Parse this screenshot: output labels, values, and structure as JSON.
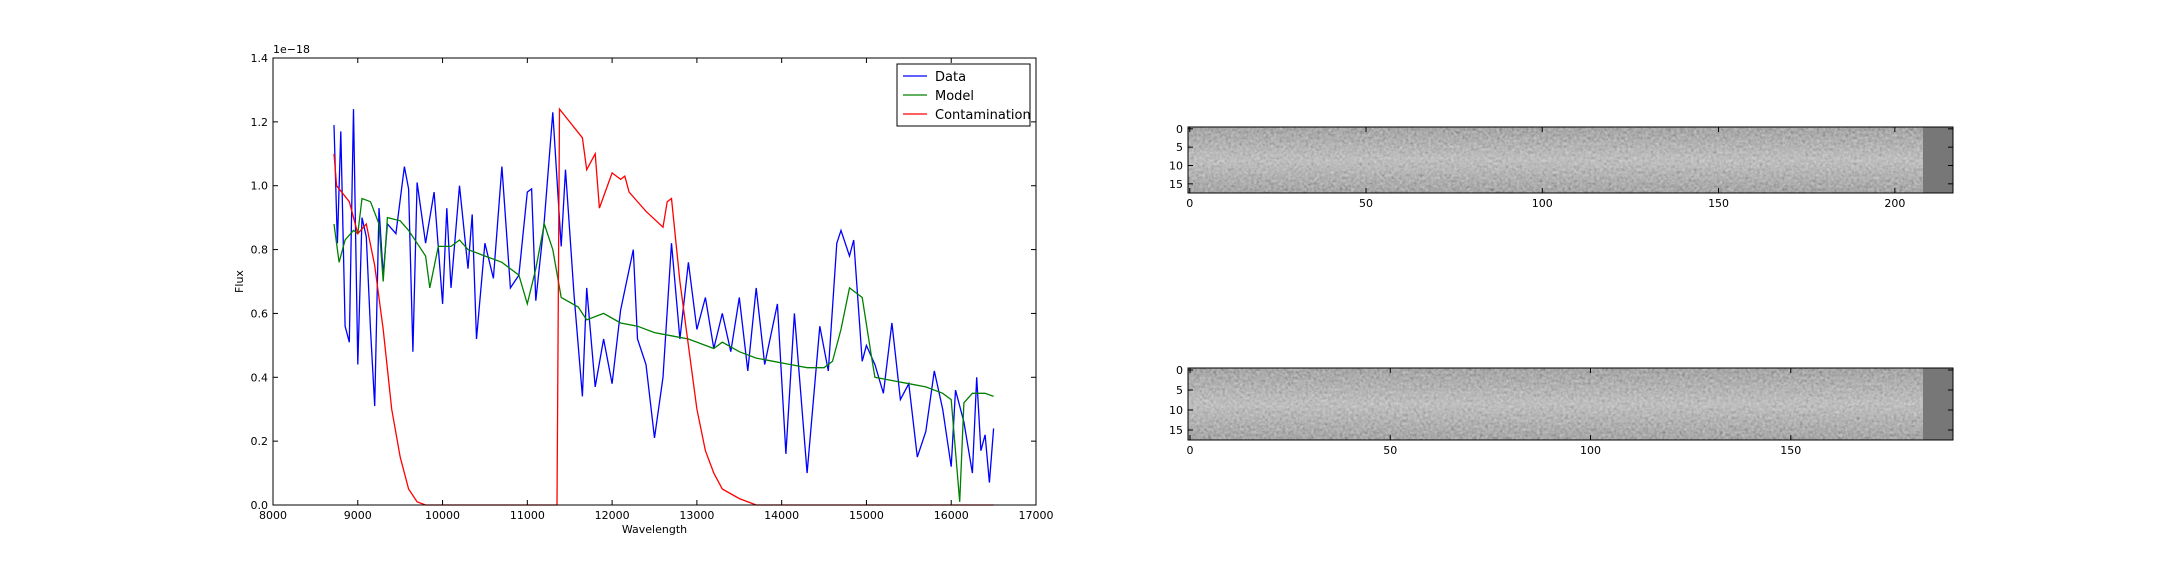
{
  "chart_data": [
    {
      "type": "line",
      "xlabel": "Wavelength",
      "ylabel": "Flux",
      "y_offset_label": "1e−18",
      "xlim": [
        8000,
        17000
      ],
      "xticks": [
        8000,
        9000,
        10000,
        11000,
        12000,
        13000,
        14000,
        15000,
        16000,
        17000
      ],
      "ylim": [
        0,
        1.4
      ],
      "yticks": [
        {
          "value": 0,
          "label": "0.0"
        },
        0.2,
        0.4,
        0.6,
        0.8,
        {
          "value": 1,
          "label": "1.0"
        },
        1.2,
        1.4
      ],
      "legend": "upper right",
      "series": [
        {
          "name": "Data",
          "color": "#0000ff",
          "x": [
            8720,
            8760,
            8800,
            8850,
            8900,
            8950,
            9000,
            9050,
            9100,
            9150,
            9200,
            9250,
            9300,
            9350,
            9450,
            9550,
            9600,
            9650,
            9700,
            9800,
            9900,
            10000,
            10050,
            10100,
            10200,
            10300,
            10350,
            10400,
            10500,
            10600,
            10700,
            10800,
            10900,
            11000,
            11050,
            11100,
            11200,
            11300,
            11400,
            11450,
            11550,
            11650,
            11700,
            11800,
            11900,
            12000,
            12100,
            12250,
            12300,
            12400,
            12500,
            12600,
            12700,
            12800,
            12900,
            13000,
            13100,
            13200,
            13300,
            13400,
            13500,
            13600,
            13700,
            13800,
            13950,
            14050,
            14150,
            14300,
            14450,
            14550,
            14650,
            14700,
            14800,
            14850,
            14950,
            15000,
            15100,
            15200,
            15300,
            15400,
            15500,
            15600,
            15700,
            15800,
            15900,
            16000,
            16050,
            16150,
            16250,
            16300,
            16350,
            16400,
            16450,
            16500
          ],
          "values": [
            1.19,
            0.82,
            1.17,
            0.56,
            0.51,
            1.24,
            0.44,
            0.9,
            0.84,
            0.55,
            0.31,
            0.93,
            0.72,
            0.88,
            0.85,
            1.06,
            0.99,
            0.48,
            1.01,
            0.82,
            0.98,
            0.63,
            0.93,
            0.68,
            1.0,
            0.74,
            0.91,
            0.52,
            0.82,
            0.71,
            1.06,
            0.68,
            0.72,
            0.98,
            0.99,
            0.64,
            0.89,
            1.23,
            0.81,
            1.05,
            0.66,
            0.34,
            0.68,
            0.37,
            0.52,
            0.38,
            0.61,
            0.8,
            0.52,
            0.44,
            0.21,
            0.4,
            0.82,
            0.52,
            0.76,
            0.55,
            0.65,
            0.49,
            0.6,
            0.48,
            0.65,
            0.42,
            0.68,
            0.44,
            0.63,
            0.16,
            0.6,
            0.1,
            0.56,
            0.42,
            0.82,
            0.86,
            0.78,
            0.83,
            0.45,
            0.5,
            0.44,
            0.35,
            0.57,
            0.33,
            0.38,
            0.15,
            0.23,
            0.42,
            0.3,
            0.12,
            0.36,
            0.26,
            0.1,
            0.4,
            0.17,
            0.22,
            0.07,
            0.24
          ]
        },
        {
          "name": "Model",
          "color": "#008000",
          "x": [
            8720,
            8780,
            8850,
            8950,
            9000,
            9050,
            9150,
            9250,
            9300,
            9350,
            9500,
            9600,
            9700,
            9800,
            9850,
            9950,
            10100,
            10200,
            10300,
            10500,
            10700,
            10900,
            11000,
            11100,
            11200,
            11300,
            11400,
            11600,
            11700,
            11900,
            12100,
            12300,
            12500,
            12700,
            12900,
            13100,
            13200,
            13300,
            13500,
            13700,
            13900,
            14100,
            14300,
            14500,
            14600,
            14700,
            14800,
            14950,
            15050,
            15100,
            15300,
            15500,
            15700,
            15900,
            16000,
            16100,
            16150,
            16250,
            16400,
            16500
          ],
          "values": [
            0.88,
            0.76,
            0.83,
            0.86,
            0.85,
            0.96,
            0.95,
            0.88,
            0.7,
            0.9,
            0.89,
            0.86,
            0.82,
            0.78,
            0.68,
            0.81,
            0.81,
            0.83,
            0.8,
            0.78,
            0.76,
            0.72,
            0.63,
            0.74,
            0.88,
            0.8,
            0.65,
            0.62,
            0.58,
            0.6,
            0.57,
            0.56,
            0.54,
            0.53,
            0.52,
            0.5,
            0.49,
            0.51,
            0.48,
            0.46,
            0.45,
            0.44,
            0.43,
            0.43,
            0.45,
            0.55,
            0.68,
            0.65,
            0.48,
            0.4,
            0.39,
            0.38,
            0.37,
            0.35,
            0.33,
            0.01,
            0.32,
            0.35,
            0.35,
            0.34
          ]
        },
        {
          "name": "Contamination",
          "color": "#ff0000",
          "x": [
            8720,
            8750,
            8900,
            9000,
            9100,
            9200,
            9300,
            9400,
            9500,
            9600,
            9700,
            9800,
            11350,
            11380,
            11500,
            11650,
            11700,
            11800,
            11850,
            12000,
            12100,
            12150,
            12200,
            12400,
            12600,
            12650,
            12700,
            12800,
            12900,
            13000,
            13100,
            13200,
            13300,
            13500,
            13700,
            16500
          ],
          "values": [
            1.1,
            1.0,
            0.95,
            0.85,
            0.88,
            0.75,
            0.55,
            0.3,
            0.15,
            0.05,
            0.01,
            0,
            0,
            1.24,
            1.2,
            1.15,
            1.05,
            1.1,
            0.93,
            1.04,
            1.02,
            1.03,
            0.98,
            0.92,
            0.87,
            0.95,
            0.96,
            0.7,
            0.5,
            0.3,
            0.17,
            0.1,
            0.05,
            0.02,
            0,
            0
          ]
        }
      ]
    },
    {
      "type": "image",
      "xlim": [
        -0.5,
        216.5
      ],
      "xticks": [
        0,
        50,
        100,
        150,
        200
      ],
      "ylim": [
        -0.5,
        17.5
      ],
      "yticks": [
        0,
        5,
        10,
        15
      ]
    },
    {
      "type": "image",
      "xlim": [
        -0.5,
        190.5
      ],
      "xticks": [
        0,
        50,
        100,
        150
      ],
      "ylim": [
        -0.5,
        17.5
      ],
      "yticks": [
        0,
        5,
        10,
        15
      ]
    }
  ]
}
